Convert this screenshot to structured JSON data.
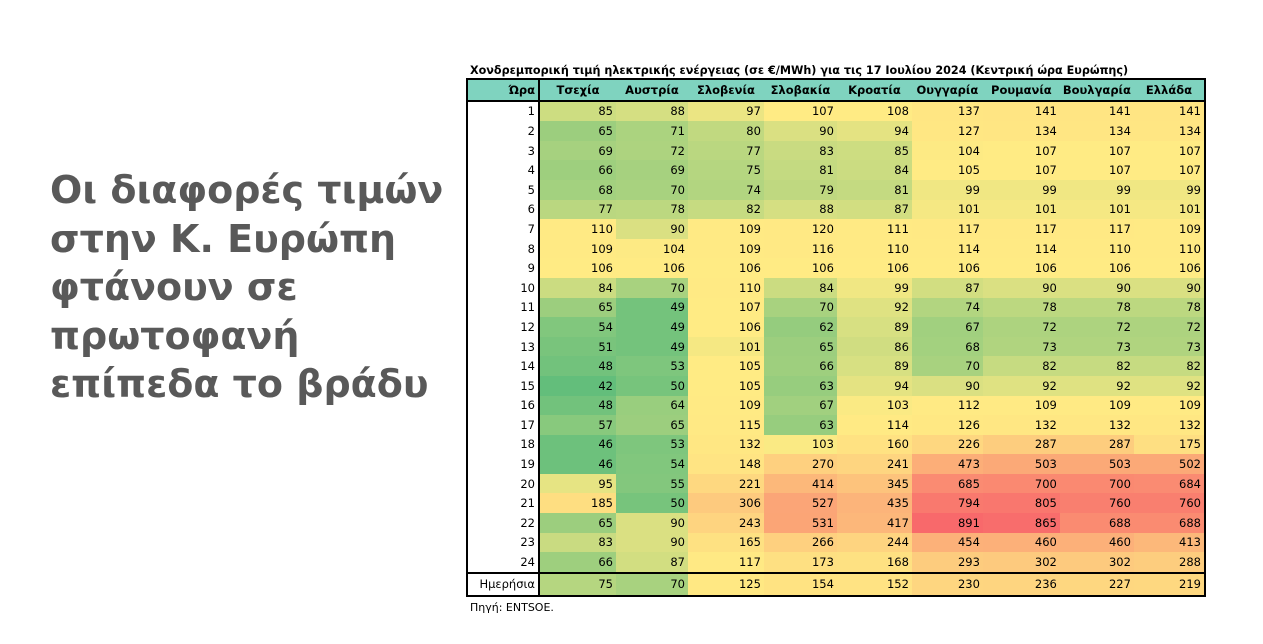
{
  "headline": "Οι διαφορές τιμών στην Κ. Ευρώπη φτάνουν σε πρωτοφανή επίπεδα το βράδυ",
  "table": {
    "title": "Χονδρεμπορική τιμή ηλεκτρικής ενέργειας (σε €/MWh) για τις 17 Ιουλίου 2024 (Κεντρική ώρα Ευρώπης)",
    "hour_header": "Ώρα",
    "countries": [
      "Τσεχία",
      "Αυστρία",
      "Σλοβενία",
      "Σλοβακία",
      "Κροατία",
      "Ουγγαρία",
      "Ρουμανία",
      "Βουλγαρία",
      "Ελλάδα"
    ],
    "rows": [
      {
        "hour": "1",
        "values": [
          85,
          88,
          97,
          107,
          108,
          137,
          141,
          141,
          141
        ]
      },
      {
        "hour": "2",
        "values": [
          65,
          71,
          80,
          90,
          94,
          127,
          134,
          134,
          134
        ]
      },
      {
        "hour": "3",
        "values": [
          69,
          72,
          77,
          83,
          85,
          104,
          107,
          107,
          107
        ]
      },
      {
        "hour": "4",
        "values": [
          66,
          69,
          75,
          81,
          84,
          105,
          107,
          107,
          107
        ]
      },
      {
        "hour": "5",
        "values": [
          68,
          70,
          74,
          79,
          81,
          99,
          99,
          99,
          99
        ]
      },
      {
        "hour": "6",
        "values": [
          77,
          78,
          82,
          88,
          87,
          101,
          101,
          101,
          101
        ]
      },
      {
        "hour": "7",
        "values": [
          110,
          90,
          109,
          120,
          111,
          117,
          117,
          117,
          109
        ]
      },
      {
        "hour": "8",
        "values": [
          109,
          104,
          109,
          116,
          110,
          114,
          114,
          110,
          110
        ]
      },
      {
        "hour": "9",
        "values": [
          106,
          106,
          106,
          106,
          106,
          106,
          106,
          106,
          106
        ]
      },
      {
        "hour": "10",
        "values": [
          84,
          70,
          110,
          84,
          99,
          87,
          90,
          90,
          90
        ]
      },
      {
        "hour": "11",
        "values": [
          65,
          49,
          107,
          70,
          92,
          74,
          78,
          78,
          78
        ]
      },
      {
        "hour": "12",
        "values": [
          54,
          49,
          106,
          62,
          89,
          67,
          72,
          72,
          72
        ]
      },
      {
        "hour": "13",
        "values": [
          51,
          49,
          101,
          65,
          86,
          68,
          73,
          73,
          73
        ]
      },
      {
        "hour": "14",
        "values": [
          48,
          53,
          105,
          66,
          89,
          70,
          82,
          82,
          82
        ]
      },
      {
        "hour": "15",
        "values": [
          42,
          50,
          105,
          63,
          94,
          90,
          92,
          92,
          92
        ]
      },
      {
        "hour": "16",
        "values": [
          48,
          64,
          109,
          67,
          103,
          112,
          109,
          109,
          109
        ]
      },
      {
        "hour": "17",
        "values": [
          57,
          65,
          115,
          63,
          114,
          126,
          132,
          132,
          132
        ]
      },
      {
        "hour": "18",
        "values": [
          46,
          53,
          132,
          103,
          160,
          226,
          287,
          287,
          175
        ]
      },
      {
        "hour": "19",
        "values": [
          46,
          54,
          148,
          270,
          241,
          473,
          503,
          503,
          502
        ]
      },
      {
        "hour": "20",
        "values": [
          95,
          55,
          221,
          414,
          345,
          685,
          700,
          700,
          684
        ]
      },
      {
        "hour": "21",
        "values": [
          185,
          50,
          306,
          527,
          435,
          794,
          805,
          760,
          760
        ]
      },
      {
        "hour": "22",
        "values": [
          65,
          90,
          243,
          531,
          417,
          891,
          865,
          688,
          688
        ]
      },
      {
        "hour": "23",
        "values": [
          83,
          90,
          165,
          266,
          244,
          454,
          460,
          460,
          413
        ]
      },
      {
        "hour": "24",
        "values": [
          66,
          87,
          117,
          173,
          168,
          293,
          302,
          302,
          288
        ]
      }
    ],
    "average": {
      "label": "Ημερήσια",
      "values": [
        75,
        70,
        125,
        154,
        152,
        230,
        236,
        227,
        219
      ]
    },
    "colors": {
      "header": "#7fd3bf",
      "low": "#63be7b",
      "mid": "#ffeb84",
      "high": "#f8696b"
    }
  },
  "source": "Πηγή: ENTSOE."
}
